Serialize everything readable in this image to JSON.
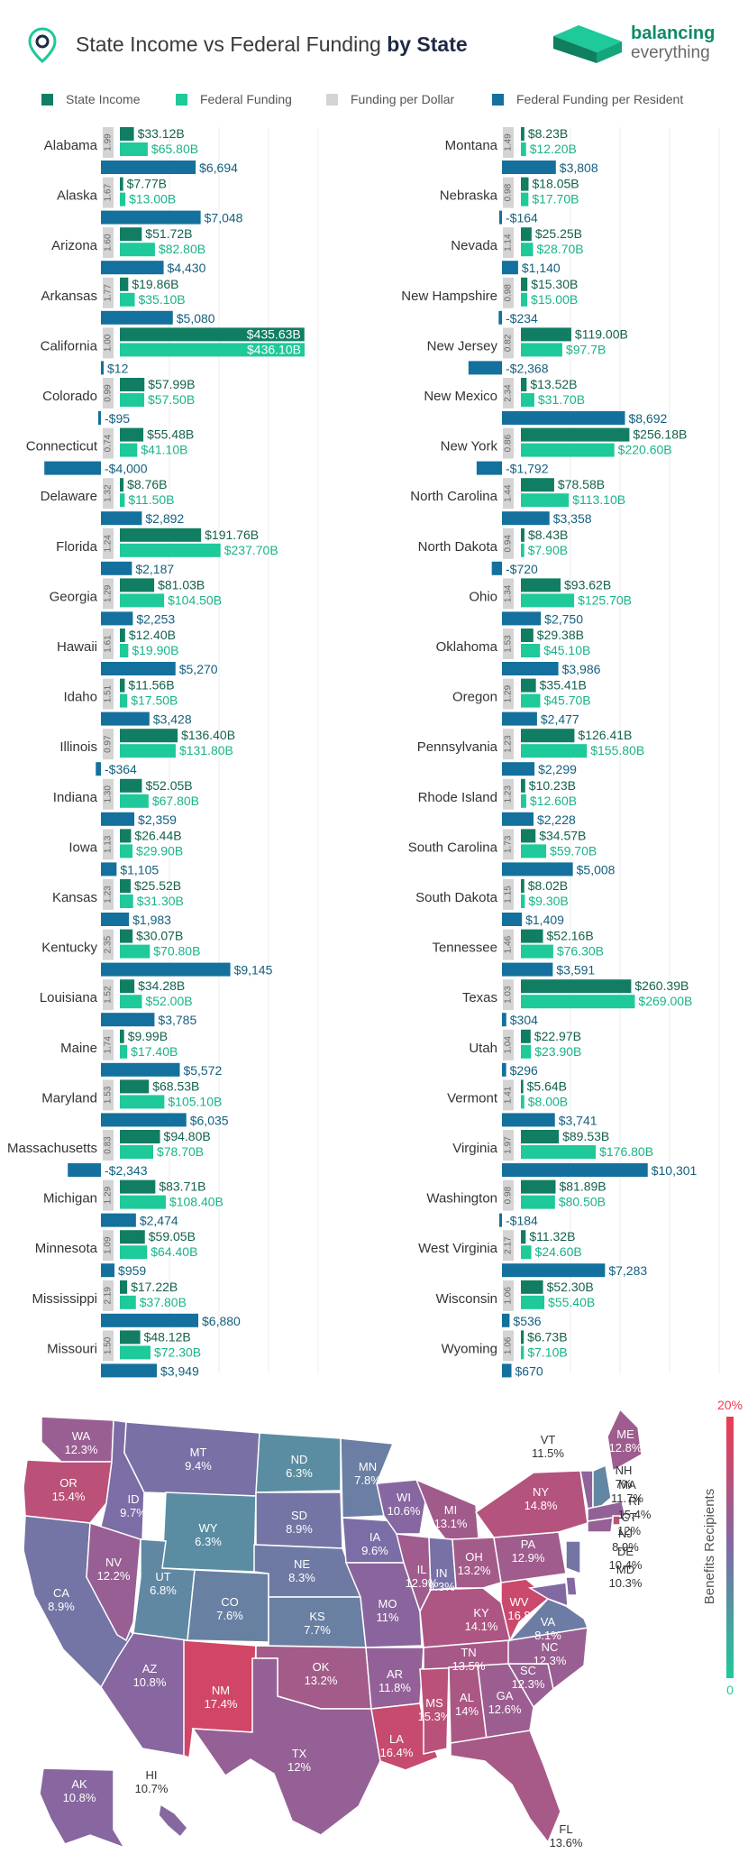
{
  "header": {
    "title_prefix": "State Income vs Federal Funding ",
    "title_bold": "by State",
    "brand_line1": "balancing",
    "brand_line2": "everything"
  },
  "legend": {
    "state_income": "State Income",
    "federal_funding": "Federal Funding",
    "funding_per_dollar": "Funding per Dollar",
    "funding_per_resident": "Federal Funding per Resident"
  },
  "colors": {
    "state_income": "#117e63",
    "federal_funding": "#1ec99a",
    "funding_per_dollar": "#d4d4d4",
    "funding_per_resident": "#14709c",
    "map_low": "#1ec99a",
    "map_mid": "#7f6aa6",
    "map_high": "#ee3a50"
  },
  "chart_data": {
    "type": "bar",
    "series": [
      {
        "name": "State Income",
        "unit": "$B"
      },
      {
        "name": "Federal Funding",
        "unit": "$B"
      },
      {
        "name": "Funding per Dollar",
        "unit": "ratio"
      },
      {
        "name": "Federal Funding per Resident",
        "unit": "$"
      }
    ],
    "states": [
      {
        "state": "Alabama",
        "income": 33.12,
        "income_label": "$33.12B",
        "funding": 65.8,
        "funding_label": "$65.80B",
        "per_dollar": "1.99",
        "per_resident": 6694,
        "per_resident_label": "$6,694"
      },
      {
        "state": "Alaska",
        "income": 7.77,
        "income_label": "$7.77B",
        "funding": 13.0,
        "funding_label": "$13.00B",
        "per_dollar": "1.67",
        "per_resident": 7048,
        "per_resident_label": "$7,048"
      },
      {
        "state": "Arizona",
        "income": 51.72,
        "income_label": "$51.72B",
        "funding": 82.8,
        "funding_label": "$82.80B",
        "per_dollar": "1.60",
        "per_resident": 4430,
        "per_resident_label": "$4,430"
      },
      {
        "state": "Arkansas",
        "income": 19.86,
        "income_label": "$19.86B",
        "funding": 35.1,
        "funding_label": "$35.10B",
        "per_dollar": "1.77",
        "per_resident": 5080,
        "per_resident_label": "$5,080"
      },
      {
        "state": "California",
        "income": 435.63,
        "income_label": "$435.63B",
        "funding": 436.1,
        "funding_label": "$436.10B",
        "per_dollar": "1.00",
        "per_resident": 12,
        "per_resident_label": "$12"
      },
      {
        "state": "Colorado",
        "income": 57.99,
        "income_label": "$57.99B",
        "funding": 57.5,
        "funding_label": "$57.50B",
        "per_dollar": "0.99",
        "per_resident": -95,
        "per_resident_label": "-$95"
      },
      {
        "state": "Connecticut",
        "income": 55.48,
        "income_label": "$55.48B",
        "funding": 41.1,
        "funding_label": "$41.10B",
        "per_dollar": "0.74",
        "per_resident": -4000,
        "per_resident_label": "-$4,000"
      },
      {
        "state": "Delaware",
        "income": 8.76,
        "income_label": "$8.76B",
        "funding": 11.5,
        "funding_label": "$11.50B",
        "per_dollar": "1.32",
        "per_resident": 2892,
        "per_resident_label": "$2,892"
      },
      {
        "state": "Florida",
        "income": 191.76,
        "income_label": "$191.76B",
        "funding": 237.7,
        "funding_label": "$237.70B",
        "per_dollar": "1.24",
        "per_resident": 2187,
        "per_resident_label": "$2,187"
      },
      {
        "state": "Georgia",
        "income": 81.03,
        "income_label": "$81.03B",
        "funding": 104.5,
        "funding_label": "$104.50B",
        "per_dollar": "1.29",
        "per_resident": 2253,
        "per_resident_label": "$2,253"
      },
      {
        "state": "Hawaii",
        "income": 12.4,
        "income_label": "$12.40B",
        "funding": 19.9,
        "funding_label": "$19.90B",
        "per_dollar": "1.61",
        "per_resident": 5270,
        "per_resident_label": "$5,270"
      },
      {
        "state": "Idaho",
        "income": 11.56,
        "income_label": "$11.56B",
        "funding": 17.5,
        "funding_label": "$17.50B",
        "per_dollar": "1.51",
        "per_resident": 3428,
        "per_resident_label": "$3,428"
      },
      {
        "state": "Illinois",
        "income": 136.4,
        "income_label": "$136.40B",
        "funding": 131.8,
        "funding_label": "$131.80B",
        "per_dollar": "0.97",
        "per_resident": -364,
        "per_resident_label": "-$364"
      },
      {
        "state": "Indiana",
        "income": 52.05,
        "income_label": "$52.05B",
        "funding": 67.8,
        "funding_label": "$67.80B",
        "per_dollar": "1.30",
        "per_resident": 2359,
        "per_resident_label": "$2,359"
      },
      {
        "state": "Iowa",
        "income": 26.44,
        "income_label": "$26.44B",
        "funding": 29.9,
        "funding_label": "$29.90B",
        "per_dollar": "1.13",
        "per_resident": 1105,
        "per_resident_label": "$1,105"
      },
      {
        "state": "Kansas",
        "income": 25.52,
        "income_label": "$25.52B",
        "funding": 31.3,
        "funding_label": "$31.30B",
        "per_dollar": "1.23",
        "per_resident": 1983,
        "per_resident_label": "$1,983"
      },
      {
        "state": "Kentucky",
        "income": 30.07,
        "income_label": "$30.07B",
        "funding": 70.8,
        "funding_label": "$70.80B",
        "per_dollar": "2.35",
        "per_resident": 9145,
        "per_resident_label": "$9,145"
      },
      {
        "state": "Louisiana",
        "income": 34.28,
        "income_label": "$34.28B",
        "funding": 52.0,
        "funding_label": "$52.00B",
        "per_dollar": "1.52",
        "per_resident": 3785,
        "per_resident_label": "$3,785"
      },
      {
        "state": "Maine",
        "income": 9.99,
        "income_label": "$9.99B",
        "funding": 17.4,
        "funding_label": "$17.40B",
        "per_dollar": "1.74",
        "per_resident": 5572,
        "per_resident_label": "$5,572"
      },
      {
        "state": "Maryland",
        "income": 68.53,
        "income_label": "$68.53B",
        "funding": 105.1,
        "funding_label": "$105.10B",
        "per_dollar": "1.53",
        "per_resident": 6035,
        "per_resident_label": "$6,035"
      },
      {
        "state": "Massachusetts",
        "income": 94.8,
        "income_label": "$94.80B",
        "funding": 78.7,
        "funding_label": "$78.70B",
        "per_dollar": "0.83",
        "per_resident": -2343,
        "per_resident_label": "-$2,343"
      },
      {
        "state": "Michigan",
        "income": 83.71,
        "income_label": "$83.71B",
        "funding": 108.4,
        "funding_label": "$108.40B",
        "per_dollar": "1.29",
        "per_resident": 2474,
        "per_resident_label": "$2,474"
      },
      {
        "state": "Minnesota",
        "income": 59.05,
        "income_label": "$59.05B",
        "funding": 64.4,
        "funding_label": "$64.40B",
        "per_dollar": "1.09",
        "per_resident": 959,
        "per_resident_label": "$959"
      },
      {
        "state": "Mississippi",
        "income": 17.22,
        "income_label": "$17.22B",
        "funding": 37.8,
        "funding_label": "$37.80B",
        "per_dollar": "2.19",
        "per_resident": 6880,
        "per_resident_label": "$6,880"
      },
      {
        "state": "Missouri",
        "income": 48.12,
        "income_label": "$48.12B",
        "funding": 72.3,
        "funding_label": "$72.30B",
        "per_dollar": "1.50",
        "per_resident": 3949,
        "per_resident_label": "$3,949"
      },
      {
        "state": "Montana",
        "income": 8.23,
        "income_label": "$8.23B",
        "funding": 12.2,
        "funding_label": "$12.20B",
        "per_dollar": "1.49",
        "per_resident": 3808,
        "per_resident_label": "$3,808"
      },
      {
        "state": "Nebraska",
        "income": 18.05,
        "income_label": "$18.05B",
        "funding": 17.7,
        "funding_label": "$17.70B",
        "per_dollar": "0.98",
        "per_resident": -164,
        "per_resident_label": "-$164"
      },
      {
        "state": "Nevada",
        "income": 25.25,
        "income_label": "$25.25B",
        "funding": 28.7,
        "funding_label": "$28.70B",
        "per_dollar": "1.14",
        "per_resident": 1140,
        "per_resident_label": "$1,140"
      },
      {
        "state": "New Hampshire",
        "income": 15.3,
        "income_label": "$15.30B",
        "funding": 15.0,
        "funding_label": "$15.00B",
        "per_dollar": "0.98",
        "per_resident": -234,
        "per_resident_label": "-$234"
      },
      {
        "state": "New Jersey",
        "income": 119.0,
        "income_label": "$119.00B",
        "funding": 97.7,
        "funding_label": "$97.7B",
        "per_dollar": "0.82",
        "per_resident": -2368,
        "per_resident_label": "-$2,368"
      },
      {
        "state": "New Mexico",
        "income": 13.52,
        "income_label": "$13.52B",
        "funding": 31.7,
        "funding_label": "$31.70B",
        "per_dollar": "2.34",
        "per_resident": 8692,
        "per_resident_label": "$8,692"
      },
      {
        "state": "New York",
        "income": 256.18,
        "income_label": "$256.18B",
        "funding": 220.6,
        "funding_label": "$220.60B",
        "per_dollar": "0.86",
        "per_resident": -1792,
        "per_resident_label": "-$1,792"
      },
      {
        "state": "North Carolina",
        "income": 78.58,
        "income_label": "$78.58B",
        "funding": 113.1,
        "funding_label": "$113.10B",
        "per_dollar": "1.44",
        "per_resident": 3358,
        "per_resident_label": "$3,358"
      },
      {
        "state": "North Dakota",
        "income": 8.43,
        "income_label": "$8.43B",
        "funding": 7.9,
        "funding_label": "$7.90B",
        "per_dollar": "0.94",
        "per_resident": -720,
        "per_resident_label": "-$720"
      },
      {
        "state": "Ohio",
        "income": 93.62,
        "income_label": "$93.62B",
        "funding": 125.7,
        "funding_label": "$125.70B",
        "per_dollar": "1.34",
        "per_resident": 2750,
        "per_resident_label": "$2,750"
      },
      {
        "state": "Oklahoma",
        "income": 29.38,
        "income_label": "$29.38B",
        "funding": 45.1,
        "funding_label": "$45.10B",
        "per_dollar": "1.53",
        "per_resident": 3986,
        "per_resident_label": "$3,986"
      },
      {
        "state": "Oregon",
        "income": 35.41,
        "income_label": "$35.41B",
        "funding": 45.7,
        "funding_label": "$45.70B",
        "per_dollar": "1.29",
        "per_resident": 2477,
        "per_resident_label": "$2,477"
      },
      {
        "state": "Pennsylvania",
        "income": 126.41,
        "income_label": "$126.41B",
        "funding": 155.8,
        "funding_label": "$155.80B",
        "per_dollar": "1.23",
        "per_resident": 2299,
        "per_resident_label": "$2,299"
      },
      {
        "state": "Rhode Island",
        "income": 10.23,
        "income_label": "$10.23B",
        "funding": 12.6,
        "funding_label": "$12.60B",
        "per_dollar": "1.23",
        "per_resident": 2228,
        "per_resident_label": "$2,228"
      },
      {
        "state": "South Carolina",
        "income": 34.57,
        "income_label": "$34.57B",
        "funding": 59.7,
        "funding_label": "$59.70B",
        "per_dollar": "1.73",
        "per_resident": 5008,
        "per_resident_label": "$5,008"
      },
      {
        "state": "South Dakota",
        "income": 8.02,
        "income_label": "$8.02B",
        "funding": 9.3,
        "funding_label": "$9.30B",
        "per_dollar": "1.15",
        "per_resident": 1409,
        "per_resident_label": "$1,409"
      },
      {
        "state": "Tennessee",
        "income": 52.16,
        "income_label": "$52.16B",
        "funding": 76.3,
        "funding_label": "$76.30B",
        "per_dollar": "1.46",
        "per_resident": 3591,
        "per_resident_label": "$3,591"
      },
      {
        "state": "Texas",
        "income": 260.39,
        "income_label": "$260.39B",
        "funding": 269.0,
        "funding_label": "$269.00B",
        "per_dollar": "1.03",
        "per_resident": 304,
        "per_resident_label": "$304"
      },
      {
        "state": "Utah",
        "income": 22.97,
        "income_label": "$22.97B",
        "funding": 23.9,
        "funding_label": "$23.90B",
        "per_dollar": "1.04",
        "per_resident": 296,
        "per_resident_label": "$296"
      },
      {
        "state": "Vermont",
        "income": 5.64,
        "income_label": "$5.64B",
        "funding": 8.0,
        "funding_label": "$8.00B",
        "per_dollar": "1.41",
        "per_resident": 3741,
        "per_resident_label": "$3,741"
      },
      {
        "state": "Virginia",
        "income": 89.53,
        "income_label": "$89.53B",
        "funding": 176.8,
        "funding_label": "$176.80B",
        "per_dollar": "1.97",
        "per_resident": 10301,
        "per_resident_label": "$10,301"
      },
      {
        "state": "Washington",
        "income": 81.89,
        "income_label": "$81.89B",
        "funding": 80.5,
        "funding_label": "$80.50B",
        "per_dollar": "0.98",
        "per_resident": -184,
        "per_resident_label": "-$184"
      },
      {
        "state": "West Virginia",
        "income": 11.32,
        "income_label": "$11.32B",
        "funding": 24.6,
        "funding_label": "$24.60B",
        "per_dollar": "2.17",
        "per_resident": 7283,
        "per_resident_label": "$7,283"
      },
      {
        "state": "Wisconsin",
        "income": 52.3,
        "income_label": "$52.30B",
        "funding": 55.4,
        "funding_label": "$55.40B",
        "per_dollar": "1.06",
        "per_resident": 536,
        "per_resident_label": "$536"
      },
      {
        "state": "Wyoming",
        "income": 6.73,
        "income_label": "$6.73B",
        "funding": 7.1,
        "funding_label": "$7.10B",
        "per_dollar": "1.06",
        "per_resident": 670,
        "per_resident_label": "$670"
      }
    ]
  },
  "map": {
    "scale_top": "20%",
    "scale_bottom": "0",
    "scale_title": "Benefits Recipients",
    "scale_max": 20,
    "states": [
      {
        "abbr": "WA",
        "value": 12.3,
        "label": "12.3%"
      },
      {
        "abbr": "OR",
        "value": 15.4,
        "label": "15.4%"
      },
      {
        "abbr": "CA",
        "value": 8.9,
        "label": "8.9%"
      },
      {
        "abbr": "ID",
        "value": 9.7,
        "label": "9.7%"
      },
      {
        "abbr": "NV",
        "value": 12.2,
        "label": "12.2%"
      },
      {
        "abbr": "MT",
        "value": 9.4,
        "label": "9.4%"
      },
      {
        "abbr": "WY",
        "value": 6.3,
        "label": "6.3%"
      },
      {
        "abbr": "UT",
        "value": 6.8,
        "label": "6.8%"
      },
      {
        "abbr": "AZ",
        "value": 10.8,
        "label": "10.8%"
      },
      {
        "abbr": "CO",
        "value": 7.6,
        "label": "7.6%"
      },
      {
        "abbr": "NM",
        "value": 17.4,
        "label": "17.4%"
      },
      {
        "abbr": "ND",
        "value": 6.3,
        "label": "6.3%"
      },
      {
        "abbr": "SD",
        "value": 8.9,
        "label": "8.9%"
      },
      {
        "abbr": "NE",
        "value": 8.3,
        "label": "8.3%"
      },
      {
        "abbr": "KS",
        "value": 7.7,
        "label": "7.7%"
      },
      {
        "abbr": "OK",
        "value": 13.2,
        "label": "13.2%"
      },
      {
        "abbr": "TX",
        "value": 12,
        "label": "12%"
      },
      {
        "abbr": "MN",
        "value": 7.8,
        "label": "7.8%"
      },
      {
        "abbr": "IA",
        "value": 9.6,
        "label": "9.6%"
      },
      {
        "abbr": "MO",
        "value": 11,
        "label": "11%"
      },
      {
        "abbr": "AR",
        "value": 11.8,
        "label": "11.8%"
      },
      {
        "abbr": "LA",
        "value": 16.4,
        "label": "16.4%"
      },
      {
        "abbr": "WI",
        "value": 10.6,
        "label": "10.6%"
      },
      {
        "abbr": "IL",
        "value": 12.9,
        "label": "12.9%"
      },
      {
        "abbr": "MS",
        "value": 15.3,
        "label": "15.3%"
      },
      {
        "abbr": "MI",
        "value": 13.1,
        "label": "13.1%"
      },
      {
        "abbr": "IN",
        "value": 9.3,
        "label": "9.3%"
      },
      {
        "abbr": "OH",
        "value": 13.2,
        "label": "13.2%"
      },
      {
        "abbr": "KY",
        "value": 14.1,
        "label": "14.1%"
      },
      {
        "abbr": "TN",
        "value": 13.5,
        "label": "13.5%"
      },
      {
        "abbr": "AL",
        "value": 14,
        "label": "14%"
      },
      {
        "abbr": "GA",
        "value": 12.6,
        "label": "12.6%"
      },
      {
        "abbr": "FL",
        "value": 13.6,
        "label": "13.6%"
      },
      {
        "abbr": "SC",
        "value": 12.3,
        "label": "12.3%"
      },
      {
        "abbr": "NC",
        "value": 12.3,
        "label": "12.3%"
      },
      {
        "abbr": "VA",
        "value": 8.1,
        "label": "8.1%"
      },
      {
        "abbr": "WV",
        "value": 16.8,
        "label": "16.8"
      },
      {
        "abbr": "PA",
        "value": 12.9,
        "label": "12.9%"
      },
      {
        "abbr": "NY",
        "value": 14.8,
        "label": "14.8%"
      },
      {
        "abbr": "ME",
        "value": 12.8,
        "label": "12.8%"
      },
      {
        "abbr": "VT",
        "value": 11.5,
        "label": "11.5%"
      },
      {
        "abbr": "NH",
        "value": 7,
        "label": "7%"
      },
      {
        "abbr": "MA",
        "value": 11.7,
        "label": "11.7%"
      },
      {
        "abbr": "RI",
        "value": 15.4,
        "label": "15.4%"
      },
      {
        "abbr": "CT",
        "value": 12,
        "label": "12%"
      },
      {
        "abbr": "NJ",
        "value": 8.9,
        "label": "8.9%"
      },
      {
        "abbr": "DE",
        "value": 10.4,
        "label": "10.4%"
      },
      {
        "abbr": "MD",
        "value": 10.3,
        "label": "10.3%"
      },
      {
        "abbr": "AK",
        "value": 10.8,
        "label": "10.8%"
      },
      {
        "abbr": "HI",
        "value": 10.7,
        "label": "10.7%"
      }
    ]
  }
}
